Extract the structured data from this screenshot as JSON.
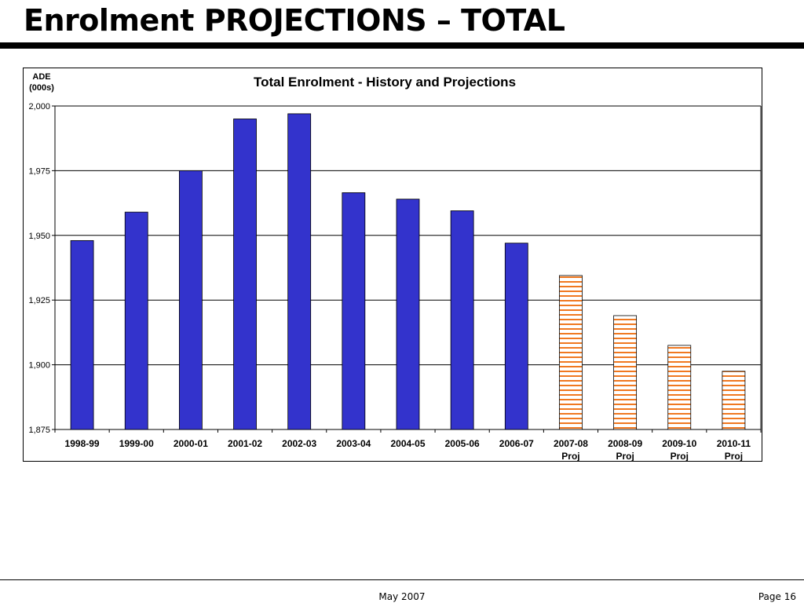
{
  "slide": {
    "title": "Enrolment PROJECTIONS – TOTAL",
    "footer_date": "May 2007",
    "footer_page": "Page 16"
  },
  "chart_data": {
    "type": "bar",
    "title": "Total Enrolment - History and Projections",
    "ylabel_line1": "ADE",
    "ylabel_line2": "(000s)",
    "xlabel": "",
    "ylim": [
      1875,
      2000
    ],
    "yticks": [
      1875,
      1900,
      1925,
      1950,
      1975,
      2000
    ],
    "ytick_labels": [
      "1,875",
      "1,900",
      "1,925",
      "1,950",
      "1,975",
      "2,000"
    ],
    "grid": true,
    "categories": [
      "1998-99",
      "1999-00",
      "2000-01",
      "2001-02",
      "2002-03",
      "2003-04",
      "2004-05",
      "2005-06",
      "2006-07",
      "2007-08",
      "2008-09",
      "2009-10",
      "2010-11"
    ],
    "category_sublabels": [
      "",
      "",
      "",
      "",
      "",
      "",
      "",
      "",
      "",
      "Proj",
      "Proj",
      "Proj",
      "Proj"
    ],
    "values": [
      1948,
      1959,
      1975,
      1995,
      1997,
      1966.5,
      1964,
      1959.5,
      1947,
      1934.5,
      1919,
      1907.5,
      1897.5
    ],
    "projected": [
      false,
      false,
      false,
      false,
      false,
      false,
      false,
      false,
      false,
      true,
      true,
      true,
      true
    ],
    "colors": {
      "history_fill": "#3333cc",
      "projection_fill": "#ffffff",
      "projection_stripe": "#f07820",
      "gridline": "#000000"
    }
  }
}
